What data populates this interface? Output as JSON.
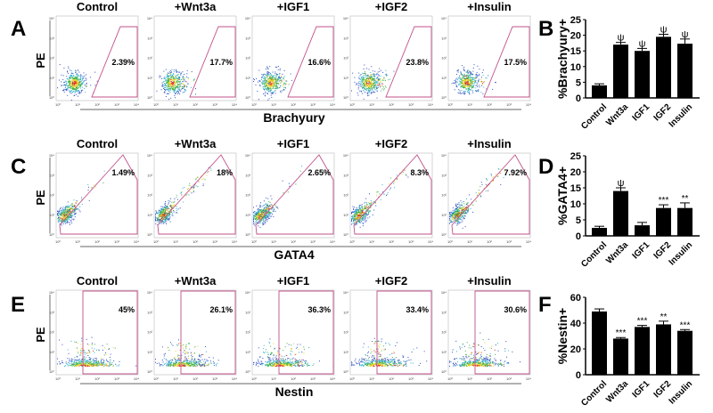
{
  "panel_letters": [
    "A",
    "B",
    "C",
    "D",
    "E",
    "F"
  ],
  "conditions": [
    "Control",
    "+Wnt3a",
    "+IGF1",
    "+IGF2",
    "+Insulin"
  ],
  "y_axis_label": "PE",
  "flow_rows": [
    {
      "marker": "Brachyury",
      "gate": "trapezoid",
      "percents": [
        "2.39%",
        "17.7%",
        "16.6%",
        "23.8%",
        "17.5%"
      ]
    },
    {
      "marker": "GATA4",
      "gate": "diagonal",
      "percents": [
        "1.49%",
        "18%",
        "2.65%",
        "8.3%",
        "7.92%"
      ]
    },
    {
      "marker": "Nestin",
      "gate": "vertical",
      "percents": [
        "45%",
        "26.1%",
        "36.3%",
        "33.4%",
        "30.6%"
      ]
    }
  ],
  "flow_ticks": [
    "10⁰",
    "10¹",
    "10²",
    "10³",
    "10⁴"
  ],
  "chart_data": [
    {
      "type": "bar",
      "panel": "B",
      "ylabel": "%Brachyury+",
      "categories": [
        "Control",
        "Wnt3a",
        "IGF1",
        "IGF2",
        "Insulin"
      ],
      "values": [
        4,
        17,
        15,
        19.5,
        17.3
      ],
      "errors": [
        0.5,
        0.7,
        0.8,
        0.8,
        1.5
      ],
      "sig": [
        "",
        "ψ",
        "ψ",
        "ψ",
        "ψ"
      ],
      "ylim": [
        0,
        25
      ],
      "yticks": [
        0,
        5,
        10,
        15,
        20,
        25
      ]
    },
    {
      "type": "bar",
      "panel": "D",
      "ylabel": "%GATA4+",
      "categories": [
        "Control",
        "Wnt3a",
        "IGF1",
        "IGF2",
        "Insulin"
      ],
      "values": [
        2.5,
        14,
        3.3,
        8.7,
        8.7
      ],
      "errors": [
        0.5,
        1,
        0.9,
        1,
        1.6
      ],
      "sig": [
        "",
        "ψ",
        "",
        "***",
        "**"
      ],
      "ylim": [
        0,
        25
      ],
      "yticks": [
        0,
        5,
        10,
        15,
        20,
        25
      ]
    },
    {
      "type": "bar",
      "panel": "F",
      "ylabel": "%Nestin+",
      "categories": [
        "Control",
        "Wnt3a",
        "IGF1",
        "IGF2",
        "Insulin"
      ],
      "values": [
        49,
        28,
        37,
        39,
        34
      ],
      "errors": [
        2,
        0.8,
        1.2,
        2.5,
        1
      ],
      "sig": [
        "",
        "***",
        "***",
        "**",
        "***"
      ],
      "ylim": [
        0,
        60
      ],
      "yticks": [
        0,
        20,
        40,
        60
      ]
    }
  ],
  "colors": {
    "gate": "#c0508a",
    "bar": "#000000"
  }
}
